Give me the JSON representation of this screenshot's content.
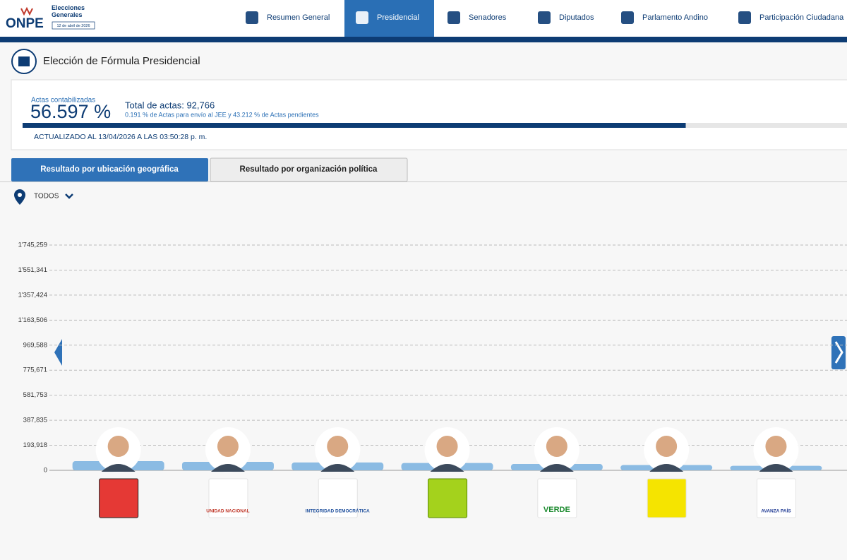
{
  "header": {
    "logo": "ONPE",
    "event": "Elecciones Generales",
    "date": "12 de abril de 2026",
    "nav": [
      "Resumen General",
      "Presidencial",
      "Senadores",
      "Diputados",
      "Parlamento Andino",
      "Participación Ciudadana"
    ]
  },
  "page_title": "Elección de Fórmula Presidencial",
  "summary": {
    "label": "Actas contabilizadas",
    "progress": {
      "value": 56.597,
      "label": "56.597 %"
    },
    "total": "Total de actas: 92,766",
    "note": "0.191 % de Actas para envío al JEE y 43.212 % de Actas pendientes",
    "updated": "ACTUALIZADO AL 13/04/2026 A LAS 03:50:28 p. m."
  },
  "tabs": [
    "Resultado por ubicación geográfica",
    "Resultado por organización política"
  ],
  "filter": "TODOS",
  "chart_data": {
    "type": "bar",
    "categories": [
      null,
      "UNIDAD NACIONAL",
      "INTEGRIDAD DEMOCRÁTICA",
      null,
      "VERDE",
      null,
      "AVANZA PAÍS"
    ],
    "values": [
      60000,
      55000,
      50000,
      46000,
      38000,
      30000,
      24000
    ],
    "color": "#8bbbe3",
    "ylim": [
      0,
      1745259
    ],
    "yticks": [
      0,
      {
        "value": 193918,
        "label": "193,918"
      },
      {
        "value": 387835,
        "label": "387,835"
      },
      {
        "value": 581753,
        "label": "581,753"
      },
      {
        "value": 775671,
        "label": "775,671"
      },
      {
        "value": 969588,
        "label": "969,588"
      },
      {
        "value": 1163506,
        "label": "1'163,506"
      },
      {
        "value": 1357424,
        "label": "1'357,424"
      },
      {
        "value": 1551341,
        "label": "1'551,341"
      },
      {
        "value": 1745259,
        "label": "1'745,259"
      }
    ],
    "grid": true
  }
}
